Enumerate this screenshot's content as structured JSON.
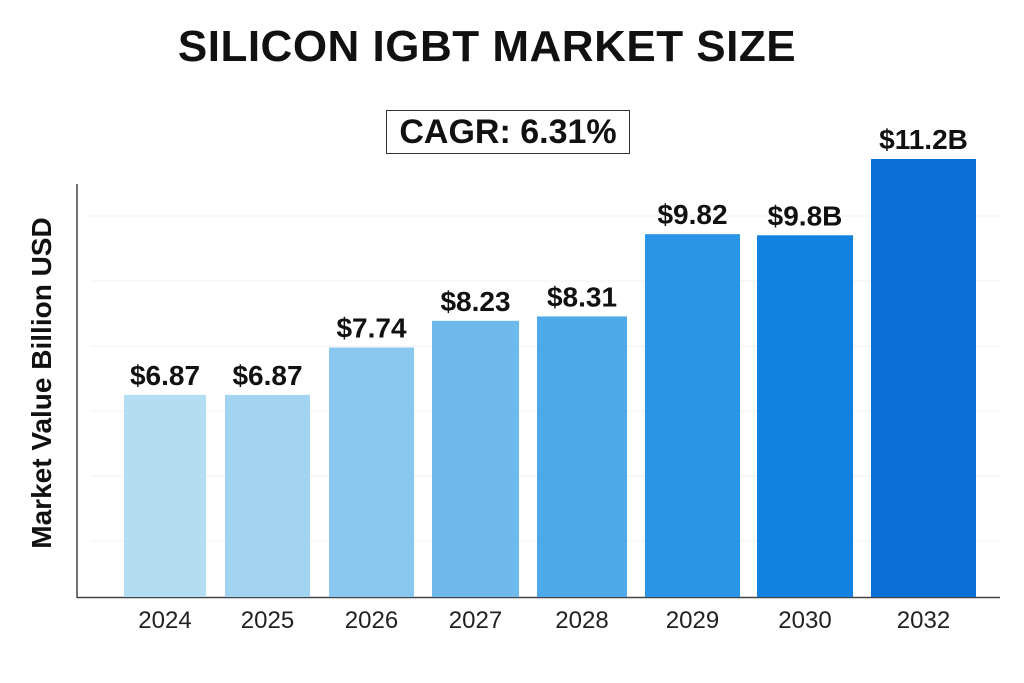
{
  "chart_data": {
    "type": "bar",
    "title": "SILICON IGBT MARKET SIZE",
    "annotation": "CAGR: 6.31%",
    "xlabel": "",
    "ylabel": "Market Value Billion USD",
    "categories": [
      "2024",
      "2025",
      "2026",
      "2027",
      "2028",
      "2029",
      "2030",
      "2032"
    ],
    "values": [
      6.87,
      6.87,
      7.74,
      8.23,
      8.31,
      9.82,
      9.8,
      11.2
    ],
    "data_labels": [
      "$6.87",
      "$6.87",
      "$7.74",
      "$8.23",
      "$8.31",
      "$9.82",
      "$9.8B",
      "$11.2B"
    ],
    "colors": [
      "#b3def2",
      "#a2d3f0",
      "#8ac7ee",
      "#6fbaec",
      "#4ea9e9",
      "#2a95e6",
      "#1282e0",
      "#0a6fd6"
    ],
    "grid": true,
    "legend": "none"
  }
}
